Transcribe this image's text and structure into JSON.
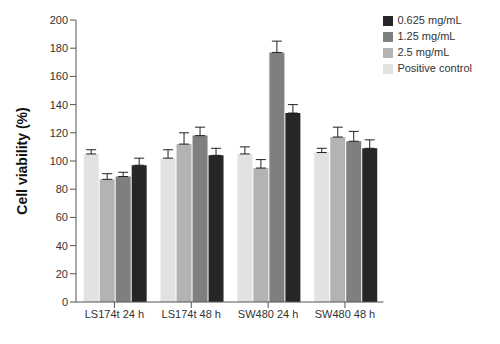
{
  "chart_data": {
    "type": "bar",
    "y_label": "Cell viability (%)",
    "categories": [
      "LS174t 24 h",
      "LS174t 48 h",
      "SW480 24 h",
      "SW480 48 h"
    ],
    "series": [
      {
        "name": "Positive control",
        "color": "#e2e2e2",
        "values": [
          105,
          102,
          105,
          106
        ],
        "errors": [
          3,
          6,
          5,
          3
        ]
      },
      {
        "name": "2.5 mg/mL",
        "color": "#b3b3b3",
        "values": [
          87,
          112,
          95,
          117
        ],
        "errors": [
          4,
          8,
          6,
          7
        ]
      },
      {
        "name": "1.25 mg/mL",
        "color": "#7f7f7f",
        "values": [
          89,
          118,
          177,
          114
        ],
        "errors": [
          3,
          6,
          8,
          7
        ]
      },
      {
        "name": "0.625 mg/mL",
        "color": "#262626",
        "values": [
          97,
          104,
          134,
          109
        ],
        "errors": [
          5,
          5,
          6,
          6
        ]
      }
    ],
    "ylim": [
      0,
      200
    ],
    "yticks": [
      0,
      20,
      40,
      60,
      80,
      100,
      120,
      140,
      160,
      180,
      200
    ],
    "grid": false,
    "legend": "upper right"
  }
}
